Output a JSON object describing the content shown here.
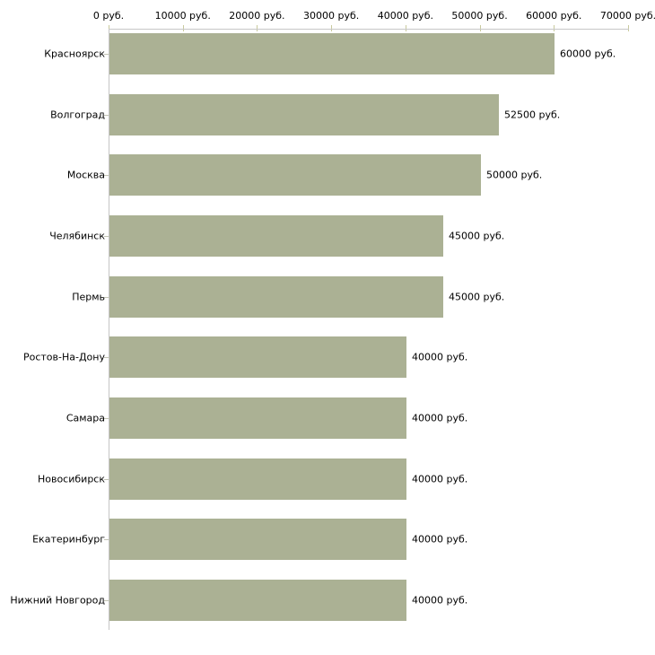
{
  "chart_data": {
    "type": "bar",
    "orientation": "horizontal",
    "title": "",
    "xlabel": "",
    "ylabel": "",
    "categories": [
      "Красноярск",
      "Волгоград",
      "Москва",
      "Челябинск",
      "Пермь",
      "Ростов-На-Дону",
      "Самара",
      "Новосибирск",
      "Екатеринбург",
      "Нижний Новгород"
    ],
    "values": [
      60000,
      52500,
      50000,
      45000,
      45000,
      40000,
      40000,
      40000,
      40000,
      40000
    ],
    "value_labels": [
      "60000 руб.",
      "52500 руб.",
      "50000 руб.",
      "45000 руб.",
      "45000 руб.",
      "40000 руб.",
      "40000 руб.",
      "40000 руб.",
      "40000 руб.",
      "40000 руб."
    ],
    "x_axis": {
      "position": "top",
      "min": 0,
      "max": 70000,
      "tick_step": 10000,
      "tick_values": [
        0,
        10000,
        20000,
        30000,
        40000,
        50000,
        60000,
        70000
      ],
      "tick_labels": [
        "0 руб.",
        "10000 руб.",
        "20000 руб.",
        "30000 руб.",
        "40000 руб.",
        "50000 руб.",
        "60000 руб.",
        "70000 руб."
      ]
    },
    "grid": false,
    "legend": false,
    "colors": {
      "bar": "#abb194",
      "axis_line": "#c6c6c6",
      "x_tick_mark": "#c9ca9d",
      "y_tick_mark": "#c2c3b4",
      "text": "#000000",
      "background": "#ffffff"
    }
  }
}
